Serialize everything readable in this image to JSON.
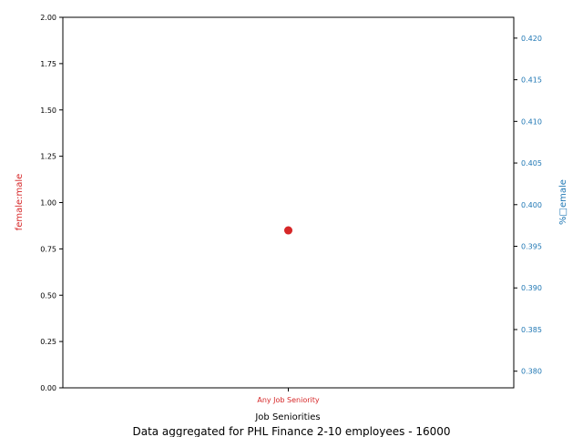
{
  "chart_data": {
    "type": "scatter",
    "categories": [
      "Any Job Seniority"
    ],
    "series": [
      {
        "axis": "left",
        "values": [
          0.85
        ],
        "color": "#d62728"
      }
    ],
    "xlabel": "Job Seniorities",
    "ylabel_left": "female:male",
    "ylabel_right": "%□emale",
    "ylim_left": [
      0,
      2
    ],
    "yticks_left": [
      0.0,
      0.25,
      0.5,
      0.75,
      1.0,
      1.25,
      1.5,
      1.75,
      2.0
    ],
    "ylim_right": [
      0.378,
      0.4225
    ],
    "yticks_right": [
      0.38,
      0.385,
      0.39,
      0.395,
      0.4,
      0.405,
      0.41,
      0.415,
      0.42
    ],
    "left_color": "#d62728",
    "right_color": "#1f77b4",
    "grid": false,
    "caption": "Data aggregated for PHL Finance 2-10 employees - 16000"
  }
}
